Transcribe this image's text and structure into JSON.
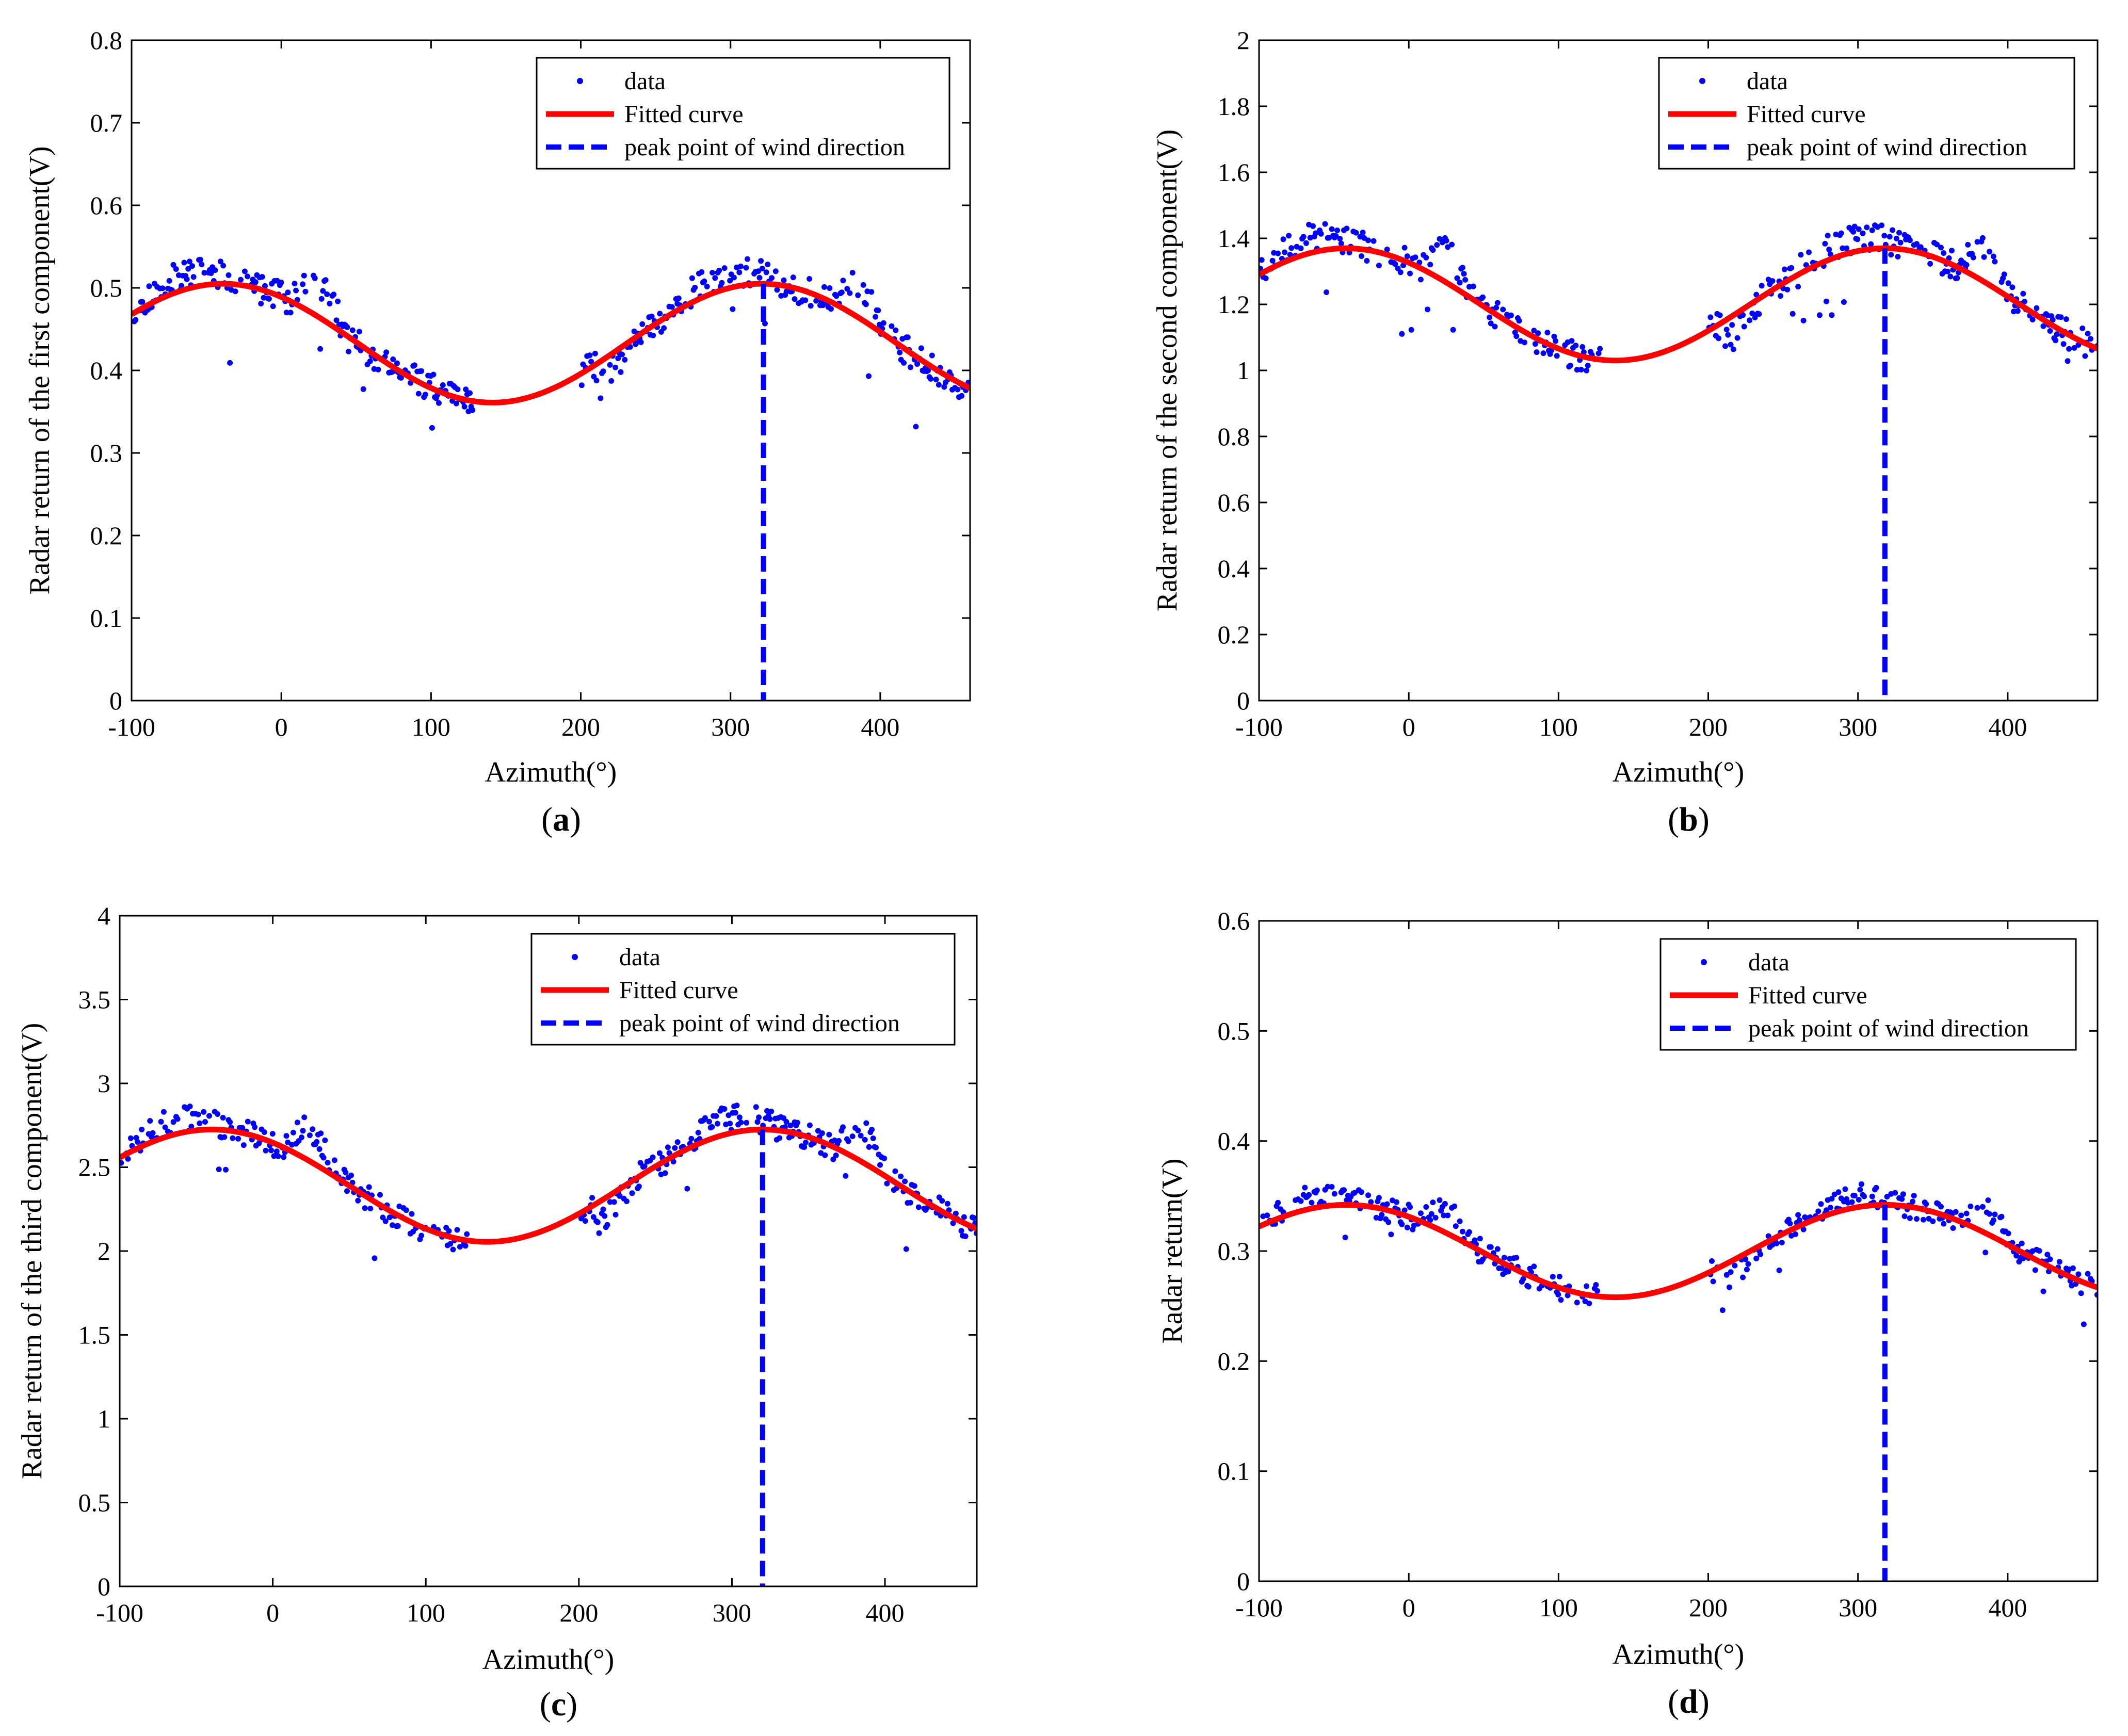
{
  "colors": {
    "data": "#0000ff",
    "fit": "#ff0000",
    "peak": "#0000ff",
    "axis": "#000000",
    "background": "#ffffff"
  },
  "chart_data": [
    {
      "id": "a",
      "type": "scatter",
      "caption": "(a)",
      "caption_open": "(",
      "caption_letter": "a",
      "caption_close": ")",
      "xlabel": "Azimuth(°)",
      "ylabel": "Radar return of the first component(V)",
      "xlim": [
        -100,
        460
      ],
      "ylim": [
        0,
        0.8
      ],
      "xticks": [
        -100,
        0,
        100,
        200,
        300,
        400
      ],
      "yticks": [
        0,
        0.1,
        0.2,
        0.3,
        0.4,
        0.5,
        0.6,
        0.7,
        0.8
      ],
      "ytick_labels": [
        "0",
        "0.1",
        "0.2",
        "0.3",
        "0.4",
        "0.5",
        "0.6",
        "0.7",
        "0.8"
      ],
      "fit": {
        "mean": 0.433,
        "amplitude": 0.072,
        "peak_x": 321,
        "period": 360
      },
      "peak_x": 322,
      "scatter_noise": 0.018,
      "seed": 11,
      "legend": [
        "data",
        "Fitted curve",
        "peak point of wind direction"
      ],
      "series": [
        {
          "name": "data",
          "kind": "scatter"
        },
        {
          "name": "Fitted curve",
          "kind": "line"
        },
        {
          "name": "peak point of wind direction",
          "kind": "vline"
        }
      ]
    },
    {
      "id": "b",
      "type": "scatter",
      "caption": "(b)",
      "caption_open": "(",
      "caption_letter": "b",
      "caption_close": ")",
      "xlabel": "Azimuth(°)",
      "ylabel": "Radar return of the second component(V)",
      "xlim": [
        -100,
        460
      ],
      "ylim": [
        0,
        2
      ],
      "xticks": [
        -100,
        0,
        100,
        200,
        300,
        400
      ],
      "yticks": [
        0,
        0.2,
        0.4,
        0.6,
        0.8,
        1,
        1.2,
        1.4,
        1.6,
        1.8,
        2
      ],
      "ytick_labels": [
        "0",
        "0.2",
        "0.4",
        "0.6",
        "0.8",
        "1",
        "1.2",
        "1.4",
        "1.6",
        "1.8",
        "2"
      ],
      "fit": {
        "mean": 1.2,
        "amplitude": 0.17,
        "peak_x": 318,
        "period": 360
      },
      "peak_x": 318,
      "scatter_noise": 0.045,
      "seed": 23,
      "legend": [
        "data",
        "Fitted curve",
        "peak point of wind direction"
      ],
      "series": [
        {
          "name": "data",
          "kind": "scatter"
        },
        {
          "name": "Fitted curve",
          "kind": "line"
        },
        {
          "name": "peak point of wind direction",
          "kind": "vline"
        }
      ]
    },
    {
      "id": "c",
      "type": "scatter",
      "caption": "(c)",
      "caption_open": "(",
      "caption_letter": "c",
      "caption_close": ")",
      "xlabel": "Azimuth(°)",
      "ylabel": "Radar return of the third  component(V)",
      "xlim": [
        -100,
        460
      ],
      "ylim": [
        0,
        4
      ],
      "xticks": [
        -100,
        0,
        100,
        200,
        300,
        400
      ],
      "yticks": [
        0,
        0.5,
        1,
        1.5,
        2,
        2.5,
        3,
        3.5,
        4
      ],
      "ytick_labels": [
        "0",
        "0.5",
        "1",
        "1.5",
        "2",
        "2.5",
        "3",
        "3.5",
        "4"
      ],
      "fit": {
        "mean": 2.39,
        "amplitude": 0.335,
        "peak_x": 320,
        "period": 360
      },
      "peak_x": 320,
      "scatter_noise": 0.08,
      "seed": 37,
      "legend": [
        "data",
        "Fitted curve",
        "peak point of wind direction"
      ],
      "series": [
        {
          "name": "data",
          "kind": "scatter"
        },
        {
          "name": "Fitted curve",
          "kind": "line"
        },
        {
          "name": "peak point of wind direction",
          "kind": "vline"
        }
      ]
    },
    {
      "id": "d",
      "type": "scatter",
      "caption": "(d)",
      "caption_open": "(",
      "caption_letter": "d",
      "caption_close": ")",
      "xlabel": "Azimuth(°)",
      "ylabel": "Radar return(V)",
      "xlim": [
        -100,
        460
      ],
      "ylim": [
        0,
        0.6
      ],
      "xticks": [
        -100,
        0,
        100,
        200,
        300,
        400
      ],
      "yticks": [
        0,
        0.1,
        0.2,
        0.3,
        0.4,
        0.5,
        0.6
      ],
      "ytick_labels": [
        "0",
        "0.1",
        "0.2",
        "0.3",
        "0.4",
        "0.5",
        "0.6"
      ],
      "fit": {
        "mean": 0.3,
        "amplitude": 0.042,
        "peak_x": 318,
        "period": 360
      },
      "peak_x": 318,
      "scatter_noise": 0.011,
      "seed": 53,
      "legend": [
        "data",
        "Fitted curve",
        "peak point of wind direction"
      ],
      "series": [
        {
          "name": "data",
          "kind": "scatter"
        },
        {
          "name": "Fitted curve",
          "kind": "line"
        },
        {
          "name": "peak point of wind direction",
          "kind": "vline"
        }
      ]
    }
  ]
}
